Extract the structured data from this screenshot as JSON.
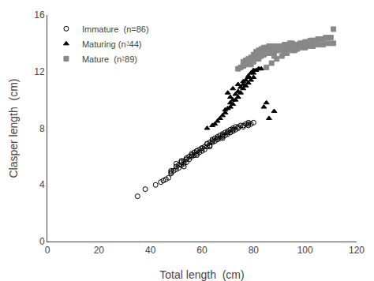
{
  "chart_data": {
    "type": "scatter",
    "x_label": "Total length  (cm)",
    "y_label": "Clasper length  (cm)",
    "xlim": [
      0,
      120
    ],
    "ylim": [
      0,
      16
    ],
    "xticks": [
      0,
      20,
      40,
      60,
      80,
      100,
      120
    ],
    "yticks": [
      0,
      4,
      8,
      12,
      16
    ],
    "grid": false,
    "legend": "upper left",
    "series": [
      {
        "name": "Immature  (n=86)",
        "color": "#000000",
        "marker": "circle-open",
        "x": [
          35,
          38,
          42,
          44,
          45,
          46,
          47,
          48,
          48,
          49,
          50,
          50,
          51,
          51,
          52,
          52,
          53,
          53,
          54,
          54,
          55,
          55,
          56,
          56,
          57,
          57,
          58,
          58,
          59,
          59,
          60,
          60,
          61,
          61,
          62,
          62,
          63,
          63,
          64,
          64,
          65,
          65,
          66,
          66,
          67,
          67,
          68,
          68,
          69,
          69,
          70,
          70,
          71,
          71,
          72,
          72,
          73,
          73,
          74,
          75,
          76,
          77,
          78,
          78,
          50,
          52,
          54,
          56,
          58,
          60,
          62,
          64,
          66,
          68,
          70,
          72,
          74,
          76,
          78,
          79,
          80,
          48,
          53,
          58,
          63,
          68
        ],
        "values": [
          3.2,
          3.7,
          4.0,
          4.2,
          4.3,
          4.4,
          4.5,
          4.8,
          5.0,
          5.0,
          5.1,
          5.3,
          5.2,
          5.4,
          5.4,
          5.6,
          5.5,
          5.7,
          5.6,
          5.8,
          5.8,
          6.0,
          6.0,
          6.2,
          6.1,
          6.3,
          6.2,
          6.4,
          6.3,
          6.5,
          6.4,
          6.6,
          6.5,
          6.7,
          6.7,
          6.9,
          6.8,
          7.0,
          7.0,
          7.2,
          7.1,
          7.3,
          7.2,
          7.4,
          7.3,
          7.5,
          7.4,
          7.6,
          7.5,
          7.7,
          7.6,
          7.8,
          7.7,
          7.9,
          7.8,
          8.0,
          7.9,
          8.1,
          8.1,
          8.2,
          8.2,
          8.3,
          8.3,
          8.4,
          5.5,
          5.7,
          5.9,
          6.1,
          6.4,
          6.6,
          6.9,
          7.1,
          7.3,
          7.5,
          7.7,
          7.9,
          8.0,
          8.1,
          8.2,
          8.3,
          8.4,
          4.9,
          5.3,
          6.1,
          6.7,
          7.3
        ]
      },
      {
        "name": "Maturing (n⁲44)",
        "color": "#000000",
        "marker": "triangle-up",
        "x": [
          62,
          64,
          65,
          66,
          67,
          68,
          69,
          70,
          71,
          71,
          72,
          72,
          73,
          73,
          74,
          74,
          75,
          75,
          76,
          76,
          77,
          77,
          78,
          78,
          79,
          79,
          80,
          80,
          81,
          82,
          83,
          84,
          85,
          86,
          88,
          70,
          72,
          74,
          76,
          78,
          80,
          82,
          69,
          71
        ],
        "values": [
          8.0,
          8.2,
          8.3,
          8.5,
          8.7,
          8.9,
          9.1,
          9.4,
          9.5,
          9.8,
          9.7,
          10.0,
          10.0,
          10.4,
          10.2,
          10.6,
          10.5,
          10.9,
          10.8,
          11.1,
          11.0,
          11.4,
          11.2,
          11.7,
          11.4,
          11.9,
          11.6,
          12.1,
          12.1,
          12.2,
          12.2,
          9.5,
          9.8,
          8.7,
          9.2,
          10.5,
          10.8,
          11.1,
          11.3,
          11.6,
          11.9,
          12.2,
          9.3,
          10.2
        ]
      },
      {
        "name": "Mature  (n⁲89)",
        "color": "#888888",
        "marker": "square",
        "x": [
          74,
          75,
          76,
          76,
          77,
          77,
          78,
          78,
          79,
          79,
          79,
          80,
          80,
          80,
          81,
          81,
          81,
          82,
          82,
          82,
          83,
          83,
          83,
          84,
          84,
          84,
          85,
          85,
          85,
          86,
          86,
          86,
          87,
          87,
          87,
          88,
          88,
          88,
          89,
          89,
          90,
          90,
          91,
          91,
          92,
          92,
          93,
          93,
          94,
          94,
          95,
          95,
          96,
          97,
          98,
          99,
          100,
          101,
          102,
          103,
          104,
          105,
          106,
          107,
          108,
          109,
          110,
          111,
          85,
          87,
          89,
          91,
          93,
          95,
          97,
          99,
          101,
          103,
          105,
          107,
          109,
          111,
          76,
          78,
          82,
          88,
          92,
          96,
          100
        ],
        "values": [
          12.2,
          12.3,
          12.4,
          12.7,
          12.5,
          12.8,
          12.6,
          12.9,
          12.5,
          12.8,
          13.0,
          12.7,
          13.0,
          13.2,
          12.9,
          13.2,
          13.4,
          13.0,
          13.3,
          13.5,
          13.1,
          13.4,
          13.6,
          13.2,
          13.4,
          13.7,
          13.3,
          13.5,
          13.7,
          13.3,
          13.5,
          13.8,
          13.4,
          13.6,
          13.8,
          13.4,
          13.6,
          13.8,
          13.5,
          13.7,
          13.5,
          13.8,
          13.6,
          13.8,
          13.6,
          13.9,
          13.7,
          13.9,
          13.7,
          14.0,
          13.8,
          14.0,
          13.8,
          13.9,
          14.0,
          14.0,
          14.1,
          14.1,
          14.2,
          14.2,
          14.2,
          14.3,
          14.3,
          14.3,
          14.4,
          14.4,
          14.4,
          15.0,
          12.3,
          12.6,
          12.9,
          13.1,
          13.3,
          13.5,
          13.6,
          13.7,
          13.8,
          13.8,
          13.9,
          13.9,
          14.0,
          14.0,
          12.4,
          12.6,
          12.9,
          13.1,
          13.3,
          13.5,
          13.7
        ]
      }
    ]
  }
}
